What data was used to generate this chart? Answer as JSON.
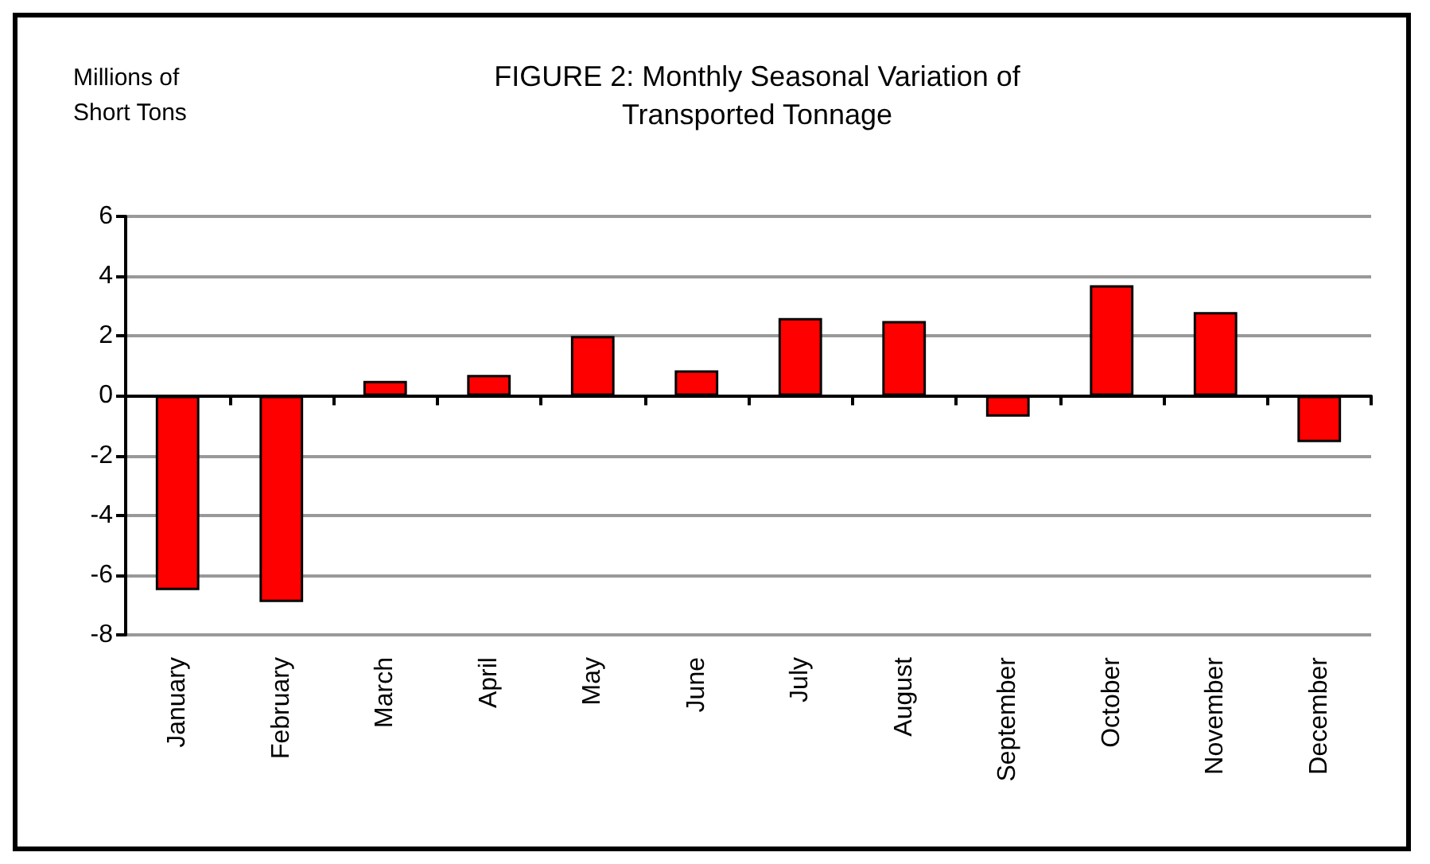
{
  "chart_data": {
    "type": "bar",
    "title": "FIGURE 2: Monthly Seasonal Variation of\nTransported Tonnage",
    "ylabel": "Millions of\nShort Tons",
    "categories": [
      "January",
      "February",
      "March",
      "April",
      "May",
      "June",
      "July",
      "August",
      "September",
      "October",
      "November",
      "December"
    ],
    "values": [
      -6.5,
      -6.9,
      0.5,
      0.7,
      2.0,
      0.85,
      2.6,
      2.5,
      -0.7,
      3.7,
      2.8,
      -1.55
    ],
    "color": "#ff0000",
    "ylim": [
      -8,
      6
    ],
    "yticks": [
      -8,
      -6,
      -4,
      -2,
      0,
      2,
      4,
      6
    ],
    "grid": "y"
  }
}
